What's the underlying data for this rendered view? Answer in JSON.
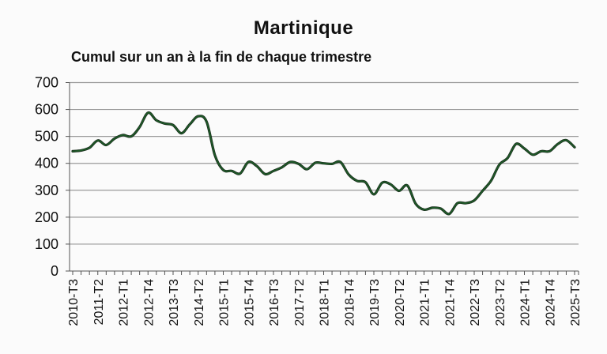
{
  "chart_data": {
    "type": "line",
    "title": "Martinique",
    "subtitle": "Cumul sur un an à la fin de chaque trimestre",
    "xlabel": "",
    "ylabel": "",
    "ylim": [
      0,
      700
    ],
    "yticks": [
      0,
      100,
      200,
      300,
      400,
      500,
      600,
      700
    ],
    "grid": true,
    "legend": null,
    "line_color": "#1e5a28",
    "x_tick_labels": [
      "2010-T3",
      "2011-T2",
      "2012-T1",
      "2012-T4",
      "2013-T3",
      "2014-T2",
      "2015-T1",
      "2015-T4",
      "2016-T3",
      "2017-T2",
      "2018-T1",
      "2018-T4",
      "2019-T3",
      "2020-T2",
      "2021-T1",
      "2021-T4",
      "2022-T3",
      "2023-T2",
      "2024-T1",
      "2024-T4",
      "2025-T3"
    ],
    "x": [
      "2010-T3",
      "2010-T4",
      "2011-T1",
      "2011-T2",
      "2011-T3",
      "2011-T4",
      "2012-T1",
      "2012-T2",
      "2012-T3",
      "2012-T4",
      "2013-T1",
      "2013-T2",
      "2013-T3",
      "2013-T4",
      "2014-T1",
      "2014-T2",
      "2014-T3",
      "2014-T4",
      "2015-T1",
      "2015-T2",
      "2015-T3",
      "2015-T4",
      "2016-T1",
      "2016-T2",
      "2016-T3",
      "2016-T4",
      "2017-T1",
      "2017-T2",
      "2017-T3",
      "2017-T4",
      "2018-T1",
      "2018-T2",
      "2018-T3",
      "2018-T4",
      "2019-T1",
      "2019-T2",
      "2019-T3",
      "2019-T4",
      "2020-T1",
      "2020-T2",
      "2020-T3",
      "2020-T4",
      "2021-T1",
      "2021-T2",
      "2021-T3",
      "2021-T4",
      "2022-T1",
      "2022-T2",
      "2022-T3",
      "2022-T4",
      "2023-T1",
      "2023-T2",
      "2023-T3",
      "2023-T4",
      "2024-T1",
      "2024-T2",
      "2024-T3",
      "2024-T4",
      "2025-T1",
      "2025-T2",
      "2025-T3"
    ],
    "series": [
      {
        "name": "Martinique",
        "values": [
          445,
          448,
          458,
          485,
          468,
          492,
          505,
          500,
          535,
          588,
          560,
          548,
          542,
          512,
          545,
          575,
          555,
          430,
          375,
          372,
          362,
          405,
          390,
          360,
          372,
          385,
          405,
          398,
          378,
          402,
          400,
          398,
          405,
          358,
          335,
          330,
          285,
          328,
          322,
          298,
          318,
          250,
          228,
          235,
          232,
          212,
          252,
          252,
          262,
          298,
          335,
          395,
          420,
          472,
          455,
          432,
          445,
          445,
          472,
          486,
          460
        ]
      }
    ]
  }
}
